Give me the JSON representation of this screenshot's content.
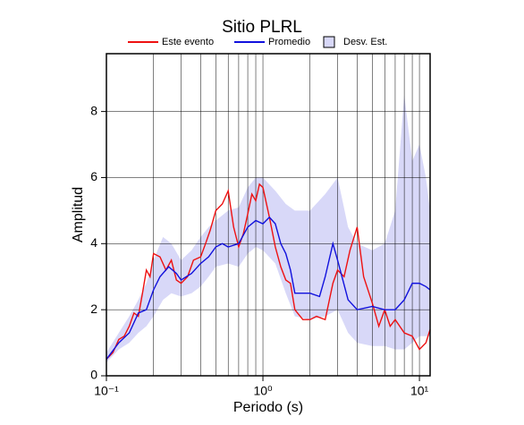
{
  "chart_data": {
    "type": "line",
    "title": "Sitio PLRL",
    "xlabel": "Periodo (s)",
    "ylabel": "Amplitud",
    "xscale": "log",
    "xlim": [
      0.1,
      11.7
    ],
    "ylim": [
      0,
      9.75
    ],
    "xticks": [
      {
        "value": 0.1,
        "label": "10⁻¹"
      },
      {
        "value": 1,
        "label": "10⁰"
      },
      {
        "value": 10,
        "label": "10¹"
      }
    ],
    "yticks": [
      0,
      2,
      4,
      6,
      8
    ],
    "xgrid": [
      0.2,
      0.3,
      0.4,
      0.5,
      0.6,
      0.7,
      0.8,
      0.9,
      1,
      2,
      3,
      4,
      5,
      6,
      7,
      8,
      9,
      10
    ],
    "grid": true,
    "series": [
      {
        "name": "Este evento",
        "color": "#ee1111",
        "x": [
          0.1,
          0.11,
          0.12,
          0.13,
          0.14,
          0.15,
          0.16,
          0.17,
          0.18,
          0.19,
          0.2,
          0.22,
          0.24,
          0.26,
          0.28,
          0.3,
          0.33,
          0.36,
          0.4,
          0.43,
          0.46,
          0.5,
          0.55,
          0.6,
          0.65,
          0.7,
          0.75,
          0.8,
          0.85,
          0.9,
          0.95,
          1.0,
          1.1,
          1.2,
          1.3,
          1.4,
          1.5,
          1.6,
          1.8,
          2.0,
          2.2,
          2.5,
          2.8,
          3.0,
          3.3,
          3.6,
          4.0,
          4.4,
          5.0,
          5.5,
          6.0,
          6.5,
          7.0,
          8.0,
          9.0,
          10,
          11,
          11.7
        ],
        "values": [
          0.5,
          0.7,
          1.1,
          1.2,
          1.5,
          1.9,
          1.8,
          2.5,
          3.2,
          3.0,
          3.7,
          3.6,
          3.2,
          3.5,
          2.9,
          2.8,
          3.0,
          3.5,
          3.6,
          4.0,
          4.4,
          5.0,
          5.2,
          5.6,
          4.5,
          3.9,
          4.3,
          4.9,
          5.5,
          5.3,
          5.8,
          5.7,
          4.8,
          3.9,
          3.3,
          2.9,
          2.8,
          2.0,
          1.7,
          1.7,
          1.8,
          1.7,
          2.8,
          3.2,
          3.0,
          3.8,
          4.5,
          3.0,
          2.2,
          1.5,
          2.0,
          1.5,
          1.7,
          1.3,
          1.2,
          0.8,
          1.0,
          1.4
        ]
      },
      {
        "name": "Promedio",
        "color": "#1111dd",
        "x": [
          0.1,
          0.12,
          0.14,
          0.16,
          0.18,
          0.2,
          0.22,
          0.25,
          0.28,
          0.3,
          0.35,
          0.4,
          0.45,
          0.5,
          0.55,
          0.6,
          0.7,
          0.8,
          0.9,
          1.0,
          1.1,
          1.2,
          1.3,
          1.4,
          1.5,
          1.6,
          1.8,
          2.0,
          2.3,
          2.5,
          2.8,
          3.0,
          3.5,
          4.0,
          5.0,
          6.0,
          7.0,
          8.0,
          9.0,
          10,
          11,
          11.7
        ],
        "values": [
          0.5,
          1.0,
          1.3,
          1.9,
          2.0,
          2.6,
          3.0,
          3.3,
          3.1,
          2.9,
          3.1,
          3.4,
          3.6,
          3.9,
          4.0,
          3.9,
          4.0,
          4.5,
          4.7,
          4.6,
          4.8,
          4.6,
          4.0,
          3.7,
          3.2,
          2.5,
          2.5,
          2.5,
          2.4,
          3.0,
          4.0,
          3.5,
          2.3,
          2.0,
          2.1,
          2.0,
          2.0,
          2.3,
          2.8,
          2.8,
          2.7,
          2.6
        ]
      }
    ],
    "band": {
      "name": "Desv. Est.",
      "color": "#d8d8f8",
      "x": [
        0.1,
        0.12,
        0.14,
        0.16,
        0.18,
        0.2,
        0.23,
        0.26,
        0.3,
        0.35,
        0.4,
        0.45,
        0.5,
        0.6,
        0.7,
        0.8,
        0.9,
        1.0,
        1.2,
        1.4,
        1.6,
        2.0,
        2.5,
        3.0,
        3.5,
        4.0,
        5.0,
        6.0,
        7.0,
        8.0,
        9.0,
        10,
        11,
        11.7
      ],
      "lower": [
        0.4,
        0.8,
        1.0,
        1.3,
        1.5,
        1.8,
        2.3,
        2.5,
        2.4,
        2.5,
        2.7,
        3.0,
        3.3,
        3.4,
        3.3,
        3.7,
        3.9,
        3.8,
        3.4,
        2.5,
        1.8,
        1.7,
        1.8,
        2.0,
        1.3,
        1.0,
        0.9,
        0.9,
        0.8,
        0.8,
        1.0,
        1.2,
        1.2,
        1.2
      ],
      "upper": [
        0.7,
        1.3,
        1.8,
        2.3,
        2.8,
        3.5,
        4.2,
        4.0,
        3.5,
        3.8,
        4.2,
        4.5,
        4.7,
        5.0,
        5.1,
        5.7,
        6.0,
        6.0,
        5.6,
        5.2,
        5.0,
        5.0,
        5.5,
        6.0,
        4.5,
        4.0,
        3.8,
        4.0,
        5.0,
        8.5,
        6.5,
        7.0,
        6.0,
        5.0
      ]
    }
  }
}
